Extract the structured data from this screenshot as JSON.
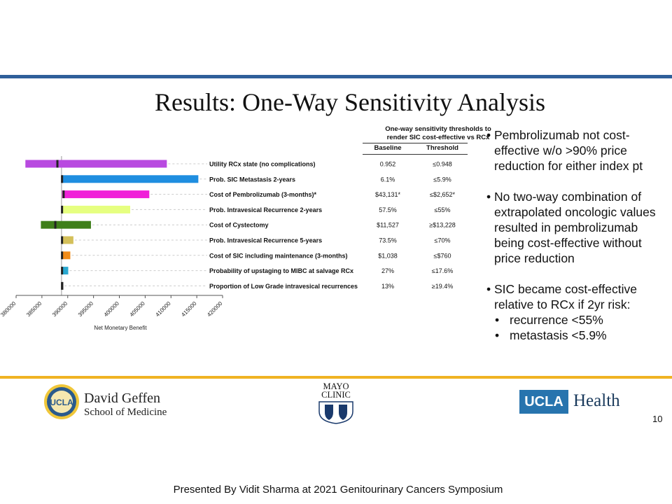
{
  "slide": {
    "title": "Results: One-Way Sensitivity Analysis",
    "page_number": "10",
    "presented_by": "Presented By Vidit Sharma at 2021 Genitourinary  Cancers Symposium"
  },
  "table": {
    "header_line1": "One-way sensitivity thresholds to",
    "header_line2": "render SIC cost-effective vs RCx",
    "col_baseline": "Baseline",
    "col_threshold": "Threshold"
  },
  "bullets": [
    "Pembrolizumab not cost-effective w/o >90% price reduction for either index pt",
    "No two-way combination of extrapolated oncologic values resulted in pembrolizumab being cost-effective without price reduction",
    "SIC became cost-effective relative to RCx if 2yr risk:"
  ],
  "sub_bullets": [
    "recurrence <55%",
    "metastasis <5.9%"
  ],
  "logos": {
    "geffen_line1": "David Geffen",
    "geffen_line2": "School of Medicine",
    "seal_text": "UCLA",
    "mayo_line1": "MAYO",
    "mayo_line2": "CLINIC",
    "ucla_box": "UCLA",
    "ucla_health": "Health"
  },
  "colors": {
    "top_rule": "#2e5f9a",
    "bottom_rule": "#f0b323",
    "ucla_blue": "#2774ae"
  },
  "chart_data": {
    "type": "bar",
    "subtype": "tornado",
    "xlabel": "Net Monetary Benefit",
    "ylabel": "",
    "xlim": [
      380000,
      420000
    ],
    "xticks": [
      380000,
      385000,
      390000,
      395000,
      400000,
      405000,
      410000,
      415000,
      420000
    ],
    "base_value": 388800,
    "grid": false,
    "rows": [
      {
        "label": "Utility RCx state (no complications)",
        "low": 381800,
        "high": 409200,
        "marker": 388000,
        "color": "#b84ae0",
        "baseline": "0.952",
        "threshold": "≤0.948"
      },
      {
        "label": "Prob. SIC Metastasis 2-years",
        "low": 388900,
        "high": 415300,
        "marker": 388900,
        "color": "#1f8ee0",
        "baseline": "6.1%",
        "threshold": "≤5.9%"
      },
      {
        "label": "Cost of Pembrolizumab (3-months)*",
        "low": 388900,
        "high": 405800,
        "marker": 389200,
        "color": "#f020d8",
        "baseline": "$43,131*",
        "threshold": "≤$2,652*"
      },
      {
        "label": "Prob. Intravesical Recurrence 2-years",
        "low": 388900,
        "high": 402100,
        "marker": 388900,
        "color": "#e6ff80",
        "baseline": "57.5%",
        "threshold": "≤55%"
      },
      {
        "label": "Cost of Cystectomy",
        "low": 384800,
        "high": 394500,
        "marker": 387600,
        "color": "#3f7f1a",
        "baseline": "$11,527",
        "threshold": "≥$13,228"
      },
      {
        "label": "Prob. Intravesical Recurrence 5-years",
        "low": 388900,
        "high": 391100,
        "marker": 388900,
        "color": "#d4c05a",
        "baseline": "73.5%",
        "threshold": "≤70%"
      },
      {
        "label": "Cost of SIC including maintenance (3-months)",
        "low": 388900,
        "high": 390500,
        "marker": 388900,
        "color": "#f28c18",
        "baseline": "$1,038",
        "threshold": "≤$760"
      },
      {
        "label": "Probability of upstaging to MIBC at salvage RCx",
        "low": 388900,
        "high": 390100,
        "marker": 388900,
        "color": "#2aa8d0",
        "baseline": "27%",
        "threshold": "≤17.6%"
      },
      {
        "label": "Proportion of Low Grade intravesical recurrences",
        "low": 388900,
        "high": 389100,
        "marker": 388900,
        "color": "#7a7a7a",
        "baseline": "13%",
        "threshold": "≥19.4%"
      }
    ]
  }
}
